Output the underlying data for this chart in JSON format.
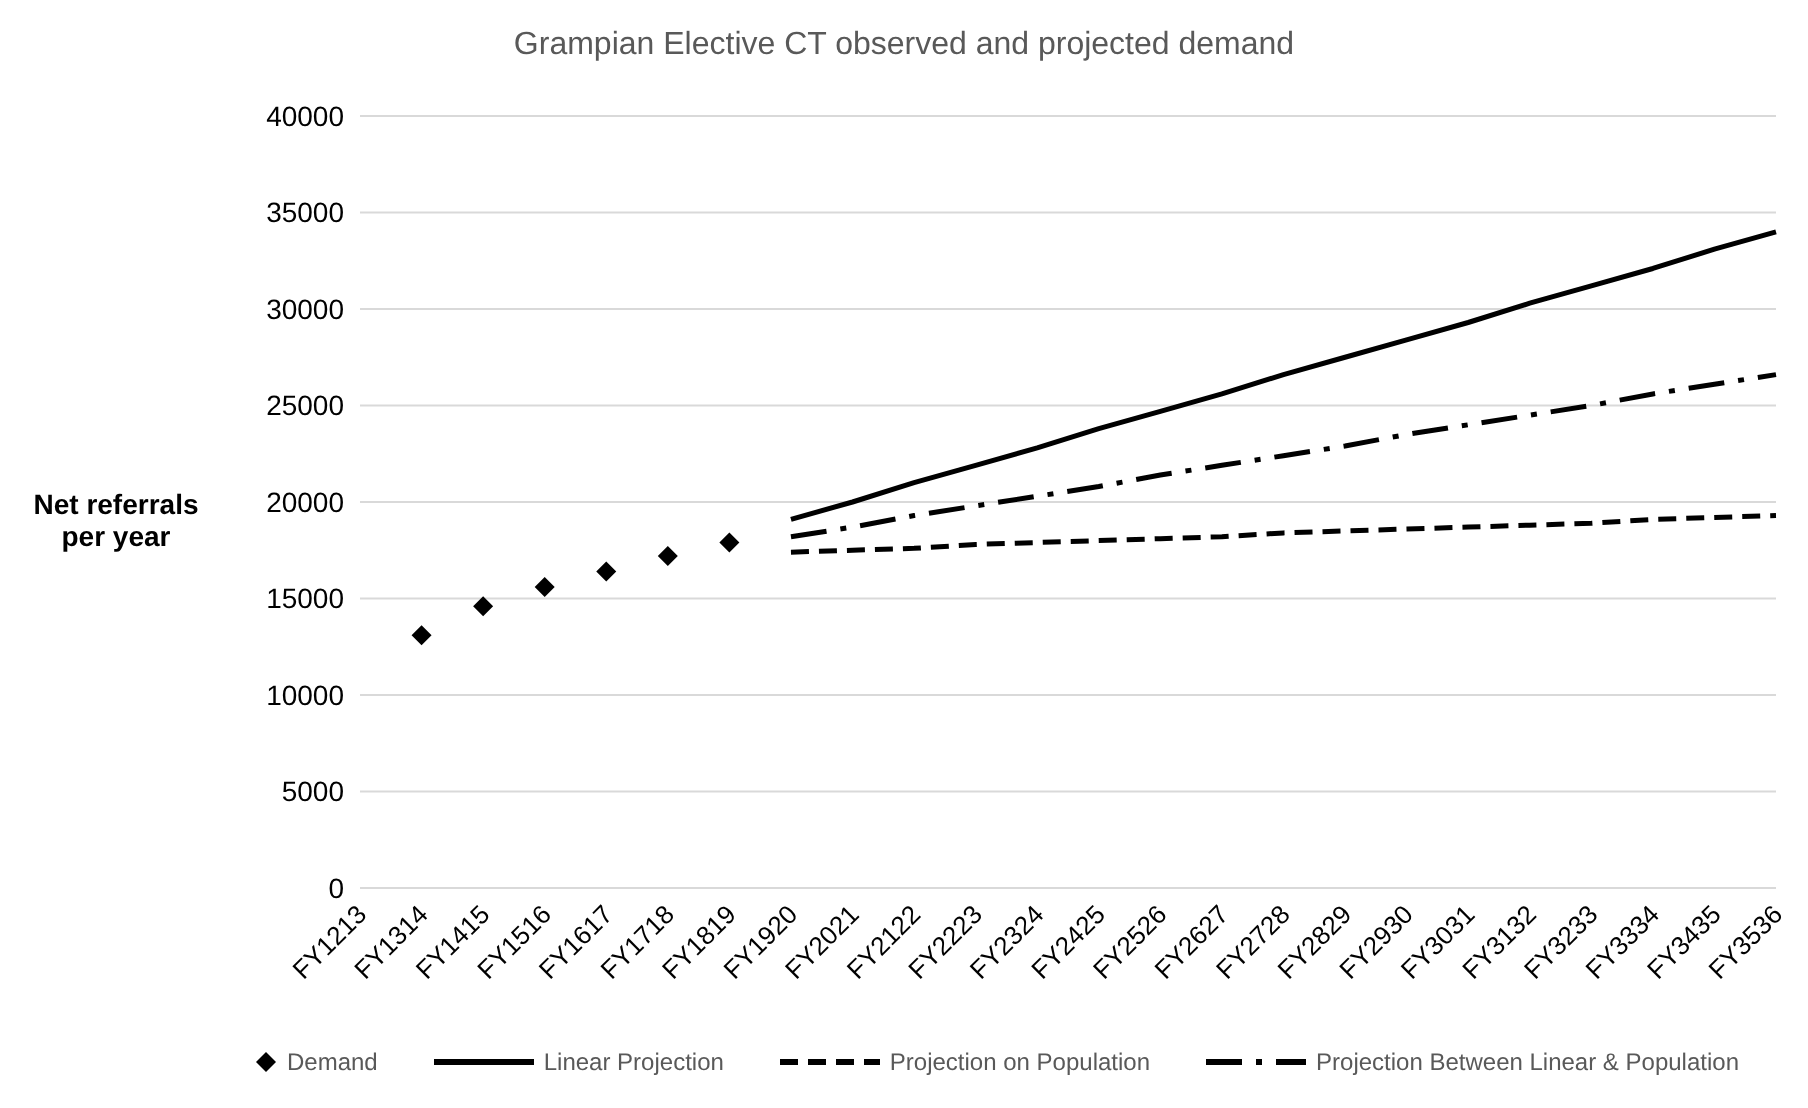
{
  "chart_data": {
    "type": "line",
    "title": "Grampian Elective CT observed and projected demand",
    "ylabel": "Net referrals per year",
    "categories": [
      "FY1213",
      "FY1314",
      "FY1415",
      "FY1516",
      "FY1617",
      "FY1718",
      "FY1819",
      "FY1920",
      "FY2021",
      "FY2122",
      "FY2223",
      "FY2324",
      "FY2425",
      "FY2526",
      "FY2627",
      "FY2728",
      "FY2829",
      "FY2930",
      "FY3031",
      "FY3132",
      "FY3233",
      "FY3334",
      "FY3435",
      "FY3536"
    ],
    "series": [
      {
        "name": "Demand",
        "type": "scatter",
        "marker": "diamond",
        "color": "#000000",
        "values": [
          null,
          13100,
          14600,
          15600,
          16400,
          17200,
          17900,
          null,
          null,
          null,
          null,
          null,
          null,
          null,
          null,
          null,
          null,
          null,
          null,
          null,
          null,
          null,
          null,
          null
        ]
      },
      {
        "name": "Linear Projection",
        "type": "line",
        "line_style": "solid",
        "color": "#000000",
        "values": [
          null,
          null,
          null,
          null,
          null,
          null,
          null,
          19100,
          20000,
          21000,
          21900,
          22800,
          23800,
          24700,
          25600,
          26600,
          27500,
          28400,
          29300,
          30300,
          31200,
          32100,
          33100,
          34000
        ]
      },
      {
        "name": "Projection on Population",
        "type": "line",
        "line_style": "dashed",
        "color": "#000000",
        "values": [
          null,
          null,
          null,
          null,
          null,
          null,
          null,
          17400,
          17500,
          17600,
          17800,
          17900,
          18000,
          18100,
          18200,
          18400,
          18500,
          18600,
          18700,
          18800,
          18900,
          19100,
          19200,
          19300
        ]
      },
      {
        "name": "Projection Between Linear & Population",
        "type": "line",
        "line_style": "dashdot",
        "color": "#000000",
        "values": [
          null,
          null,
          null,
          null,
          null,
          null,
          null,
          18200,
          18700,
          19300,
          19800,
          20300,
          20800,
          21400,
          21900,
          22400,
          22900,
          23500,
          24000,
          24500,
          25000,
          25600,
          26100,
          26600
        ]
      }
    ],
    "ylim": [
      0,
      40000
    ],
    "yticks": [
      0,
      5000,
      10000,
      15000,
      20000,
      25000,
      30000,
      35000,
      40000
    ],
    "grid": "y",
    "legend": "bottom"
  }
}
